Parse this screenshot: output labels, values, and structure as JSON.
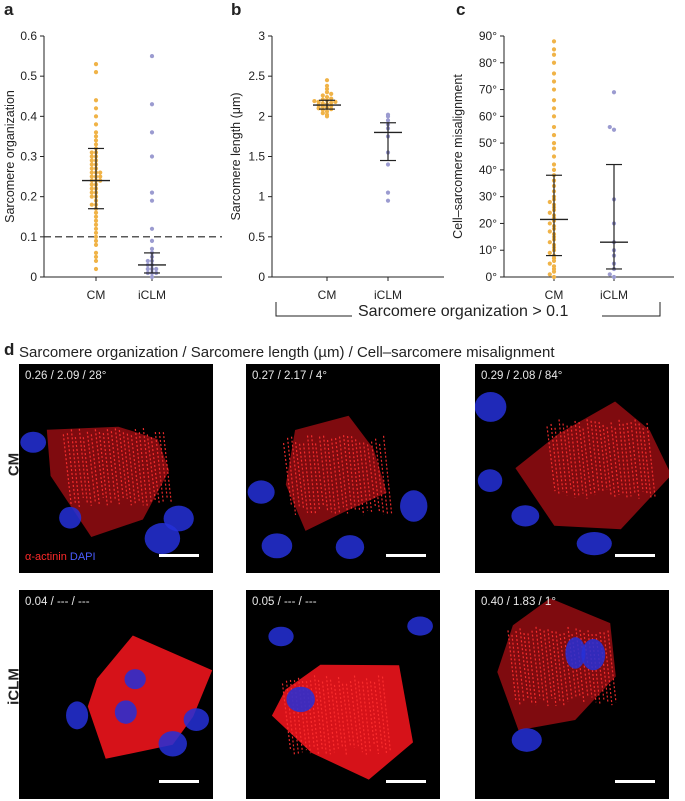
{
  "panels": {
    "a": "a",
    "b": "b",
    "c": "c",
    "d": "d"
  },
  "panel_d": {
    "title": "Sarcomere organization / Sarcomere length (µm) / Cell–sarcomere misalignment",
    "rows": [
      "CM",
      "iCLM"
    ],
    "legend": {
      "alpha_actinin": "α-actinin",
      "dapi": "DAPI"
    },
    "images": [
      {
        "row": "CM",
        "annotation": "0.26 / 2.09 / 28°"
      },
      {
        "row": "CM",
        "annotation": "0.27 / 2.17 / 4°"
      },
      {
        "row": "CM",
        "annotation": "0.29 / 2.08 / 84°"
      },
      {
        "row": "iCLM",
        "annotation": "0.04 / --- / ---"
      },
      {
        "row": "iCLM",
        "annotation": "0.05 / --- / ---"
      },
      {
        "row": "iCLM",
        "annotation": "0.40 / 1.83 / 1°"
      }
    ]
  },
  "bracket_label": "Sarcomere organization > 0.1",
  "colors": {
    "CM": "#f0b347",
    "iCLM": "#9b9bd0",
    "red": "#e8141b",
    "blue": "#2430d8"
  },
  "chart_data": [
    {
      "panel": "a",
      "type": "scatter",
      "ylabel": "Sarcomere organization",
      "ylim": [
        0,
        0.6
      ],
      "yticks": [
        "0",
        "0.1",
        "0.2",
        "0.3",
        "0.4",
        "0.5",
        "0.6"
      ],
      "categories": [
        "CM",
        "iCLM"
      ],
      "reference_line": 0.1,
      "series": [
        {
          "values": [
            0.02,
            0.04,
            0.05,
            0.06,
            0.08,
            0.09,
            0.1,
            0.11,
            0.12,
            0.13,
            0.14,
            0.15,
            0.16,
            0.17,
            0.18,
            0.18,
            0.19,
            0.2,
            0.2,
            0.21,
            0.21,
            0.22,
            0.22,
            0.23,
            0.23,
            0.24,
            0.24,
            0.24,
            0.25,
            0.25,
            0.25,
            0.26,
            0.26,
            0.26,
            0.27,
            0.27,
            0.28,
            0.28,
            0.29,
            0.29,
            0.3,
            0.3,
            0.31,
            0.31,
            0.32,
            0.33,
            0.34,
            0.35,
            0.36,
            0.38,
            0.4,
            0.42,
            0.44,
            0.51,
            0.53
          ],
          "mean": 0.24,
          "sd_low": 0.17,
          "sd_high": 0.32
        },
        {
          "values": [
            0.0,
            0.01,
            0.01,
            0.01,
            0.02,
            0.02,
            0.02,
            0.03,
            0.03,
            0.04,
            0.04,
            0.05,
            0.06,
            0.07,
            0.09,
            0.12,
            0.19,
            0.21,
            0.3,
            0.36,
            0.43,
            0.55
          ],
          "mean": 0.03,
          "sd_low": 0.01,
          "sd_high": 0.06
        }
      ]
    },
    {
      "panel": "b",
      "type": "scatter",
      "ylabel": "Sarcomere length (μm)",
      "ylim": [
        0,
        3
      ],
      "yticks": [
        "0",
        "0.5",
        "1",
        "1.5",
        "2",
        "2.5",
        "3"
      ],
      "categories": [
        "CM",
        "iCLM"
      ],
      "series": [
        {
          "values": [
            2.0,
            2.02,
            2.04,
            2.06,
            2.08,
            2.09,
            2.1,
            2.11,
            2.12,
            2.13,
            2.14,
            2.15,
            2.16,
            2.17,
            2.18,
            2.18,
            2.19,
            2.2,
            2.21,
            2.22,
            2.24,
            2.26,
            2.28,
            2.3,
            2.34,
            2.38,
            2.45
          ],
          "mean": 2.14,
          "sd_low": 2.09,
          "sd_high": 2.2
        },
        {
          "values": [
            0.95,
            1.05,
            1.4,
            1.55,
            1.75,
            1.85,
            1.9,
            1.95,
            2.0,
            2.02
          ],
          "mean": 1.8,
          "sd_low": 1.45,
          "sd_high": 1.92
        }
      ]
    },
    {
      "panel": "c",
      "type": "scatter",
      "ylabel": "Cell–sarcomere misalignment",
      "ylim": [
        0,
        90
      ],
      "yticks": [
        "0°",
        "10°",
        "20°",
        "30°",
        "40°",
        "50°",
        "60°",
        "70°",
        "80°",
        "90°"
      ],
      "categories": [
        "CM",
        "iCLM"
      ],
      "series": [
        {
          "values": [
            0,
            1,
            2,
            3,
            4,
            5,
            6,
            7,
            8,
            9,
            10,
            11,
            12,
            13,
            14,
            15,
            16,
            17,
            18,
            19,
            20,
            21,
            22,
            23,
            24,
            25,
            26,
            27,
            28,
            29,
            30,
            32,
            34,
            36,
            38,
            40,
            42,
            45,
            48,
            50,
            53,
            56,
            60,
            63,
            66,
            70,
            73,
            76,
            80,
            83,
            85,
            88
          ],
          "mean": 21.5,
          "sd_low": 8,
          "sd_high": 38
        },
        {
          "values": [
            0,
            1,
            3,
            5,
            8,
            10,
            13,
            20,
            29,
            55,
            56,
            69
          ],
          "mean": 13,
          "sd_low": 3,
          "sd_high": 42
        }
      ]
    }
  ]
}
